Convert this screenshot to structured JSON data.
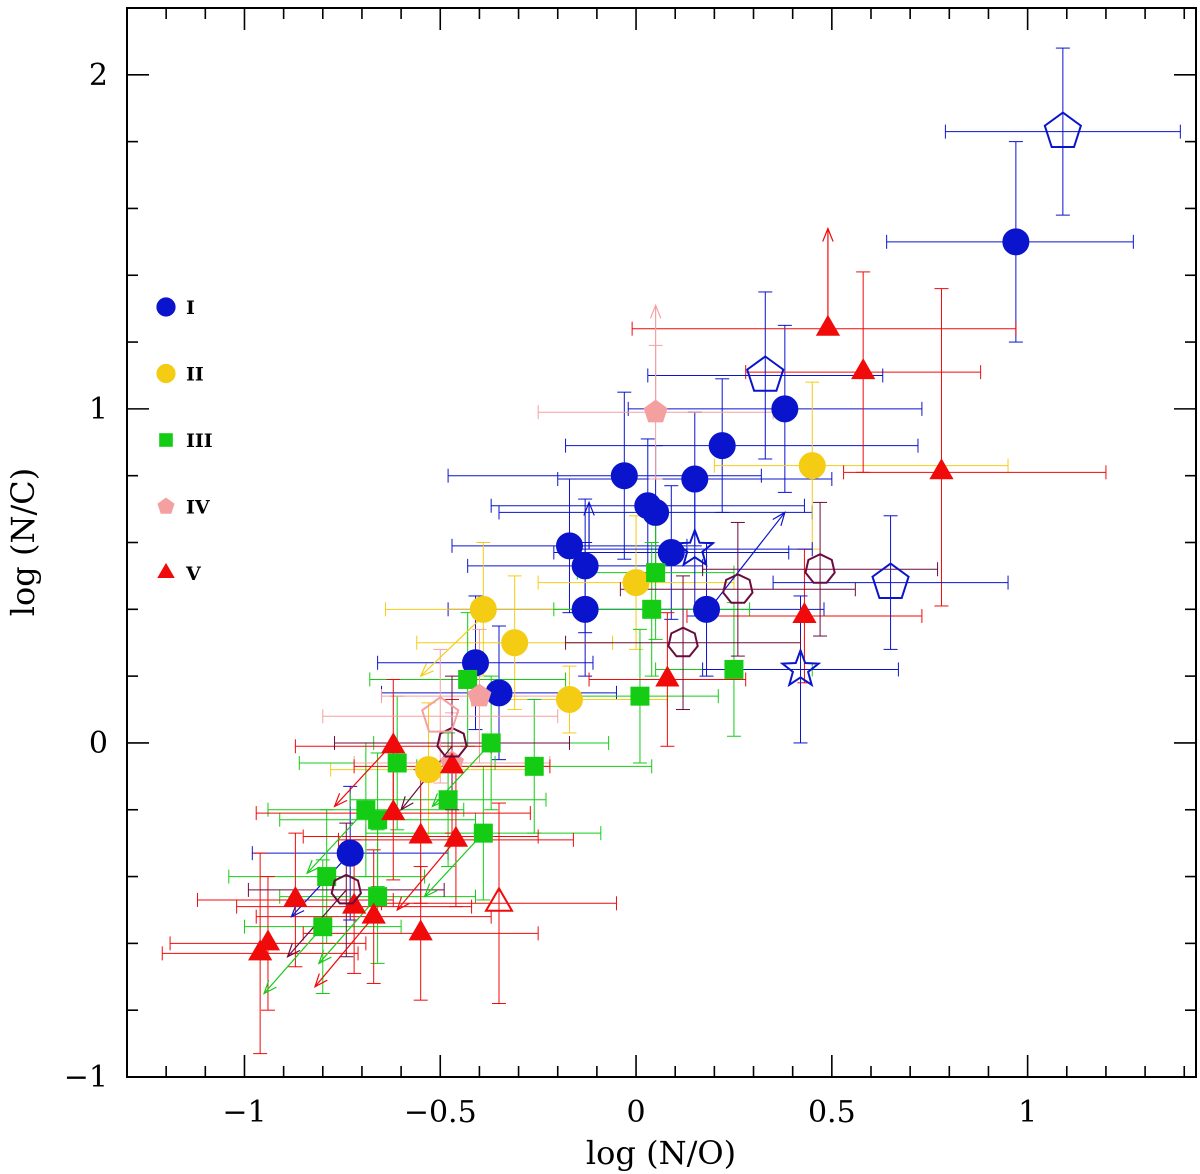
{
  "chart_data": {
    "type": "scatter",
    "title": "",
    "xlabel": "log (N/O)",
    "ylabel": "log (N/C)",
    "xlim": [
      -1.3,
      1.43
    ],
    "ylim": [
      -1.0,
      2.2
    ],
    "x_ticks": [
      -1,
      -0.5,
      0,
      0.5,
      1
    ],
    "x_tick_labels": [
      "−1",
      "−0.5",
      "0",
      "0.5",
      "1"
    ],
    "y_ticks": [
      -1,
      0,
      1,
      2
    ],
    "y_tick_labels": [
      "−1",
      "0",
      "1",
      "2"
    ],
    "grid": false,
    "legend_position": "left",
    "colors": {
      "I": "#0a14cc",
      "II": "#f5cc14",
      "III": "#14cc14",
      "IV": "#f5a0a0",
      "V": "#f00a0a",
      "other": "#6b0a3c"
    },
    "legend": [
      {
        "label": "I",
        "marker": "circle",
        "color": "#0a14cc"
      },
      {
        "label": "II",
        "marker": "circle",
        "color": "#f5cc14"
      },
      {
        "label": "III",
        "marker": "square",
        "color": "#14cc14"
      },
      {
        "label": "IV",
        "marker": "pentagon",
        "color": "#f5a0a0"
      },
      {
        "label": "V",
        "marker": "triangle",
        "color": "#f00a0a"
      }
    ],
    "series": [
      {
        "name": "I",
        "marker": "circle",
        "color": "#0a14cc",
        "points": [
          {
            "x": 0.97,
            "y": 1.5,
            "xerr": [
              0.33,
              0.3
            ],
            "yerr": [
              0.3,
              0.3
            ]
          },
          {
            "x": 0.38,
            "y": 1.0,
            "xerr": [
              0.4,
              0.35
            ],
            "yerr": [
              0.25,
              0.25
            ]
          },
          {
            "x": 0.22,
            "y": 0.89,
            "xerr": [
              0.4,
              0.5
            ],
            "yerr": [
              0.2,
              0.2
            ]
          },
          {
            "x": -0.03,
            "y": 0.8,
            "xerr": [
              0.45,
              0.35
            ],
            "yerr": [
              0.25,
              0.25
            ]
          },
          {
            "x": 0.15,
            "y": 0.79,
            "xerr": [
              0.35,
              0.35
            ],
            "yerr": [
              0.2,
              0.2
            ]
          },
          {
            "x": 0.03,
            "y": 0.71,
            "xerr": [
              0.4,
              0.4
            ],
            "yerr": [
              0.2,
              0.2
            ]
          },
          {
            "x": 0.05,
            "y": 0.69,
            "xerr": [
              0.4,
              0.4
            ],
            "yerr": [
              0.2,
              0.2
            ]
          },
          {
            "x": -0.17,
            "y": 0.59,
            "xerr": [
              0.3,
              0.3
            ],
            "yerr": [
              0.2,
              0.2
            ]
          },
          {
            "x": -0.13,
            "y": 0.53,
            "xerr": [
              0.3,
              0.3
            ],
            "yerr": [
              0.2,
              0.2
            ]
          },
          {
            "x": 0.09,
            "y": 0.57,
            "xerr": [
              0.3,
              0.3
            ],
            "yerr": [
              0.2,
              0.2
            ]
          },
          {
            "x": -0.13,
            "y": 0.4,
            "xerr": [
              0.35,
              0.3
            ],
            "yerr": [
              0.2,
              0.2
            ]
          },
          {
            "x": 0.18,
            "y": 0.4,
            "xerr": [
              0.3,
              0.3
            ],
            "yerr": [
              0.2,
              0.2
            ]
          },
          {
            "x": -0.41,
            "y": 0.24,
            "xerr": [
              0.25,
              0.3
            ],
            "yerr": [
              0.2,
              0.2
            ]
          },
          {
            "x": -0.35,
            "y": 0.15,
            "xerr": [
              0.3,
              0.3
            ],
            "yerr": [
              0.2,
              0.2
            ]
          },
          {
            "x": -0.73,
            "y": -0.33,
            "xerr": [
              0.25,
              0.25
            ],
            "yerr": [
              0.2,
              0.2
            ]
          }
        ]
      },
      {
        "name": "II",
        "marker": "circle",
        "color": "#f5cc14",
        "points": [
          {
            "x": 0.45,
            "y": 0.83,
            "xerr": [
              0.25,
              0.5
            ],
            "yerr": [
              0.25,
              0.25
            ]
          },
          {
            "x": -0.39,
            "y": 0.4,
            "xerr": [
              0.25,
              0.25
            ],
            "yerr": [
              0.2,
              0.2
            ]
          },
          {
            "x": -0.31,
            "y": 0.3,
            "xerr": [
              0.25,
              0.25
            ],
            "yerr": [
              0.2,
              0.2
            ]
          },
          {
            "x": 0.0,
            "y": 0.48,
            "xerr": [
              0.25,
              0.25
            ],
            "yerr": [
              0.2,
              0.2
            ]
          },
          {
            "x": -0.17,
            "y": 0.13,
            "xerr": [
              0.25,
              0.25
            ],
            "yerr": [
              0.1,
              0.1
            ]
          },
          {
            "x": -0.53,
            "y": -0.08,
            "xerr": [
              0.25,
              0.25
            ],
            "yerr": [
              0.2,
              0.2
            ]
          }
        ]
      },
      {
        "name": "III",
        "marker": "square",
        "color": "#14cc14",
        "points": [
          {
            "x": 0.05,
            "y": 0.51,
            "xerr": [
              0.2,
              0.2
            ],
            "yerr": [
              0.2,
              0.2
            ]
          },
          {
            "x": 0.04,
            "y": 0.4,
            "xerr": [
              0.25,
              0.25
            ],
            "yerr": [
              0.2,
              0.2
            ]
          },
          {
            "x": 0.25,
            "y": 0.22,
            "xerr": [
              0.2,
              0.2
            ],
            "yerr": [
              0.2,
              0.2
            ]
          },
          {
            "x": 0.01,
            "y": 0.14,
            "xerr": [
              0.2,
              0.2
            ],
            "yerr": [
              0.2,
              0.2
            ]
          },
          {
            "x": -0.43,
            "y": 0.19,
            "xerr": [
              0.25,
              0.25
            ],
            "yerr": [
              0.2,
              0.2
            ]
          },
          {
            "x": -0.37,
            "y": 0.0,
            "xerr": [
              0.3,
              0.3
            ],
            "yerr": [
              0.2,
              0.2
            ]
          },
          {
            "x": -0.26,
            "y": -0.07,
            "xerr": [
              0.3,
              0.3
            ],
            "yerr": [
              0.2,
              0.2
            ]
          },
          {
            "x": -0.61,
            "y": -0.06,
            "xerr": [
              0.25,
              0.25
            ],
            "yerr": [
              0.2,
              0.2
            ]
          },
          {
            "x": -0.48,
            "y": -0.17,
            "xerr": [
              0.25,
              0.25
            ],
            "yerr": [
              0.2,
              0.2
            ]
          },
          {
            "x": -0.69,
            "y": -0.2,
            "xerr": [
              0.25,
              0.25
            ],
            "yerr": [
              0.2,
              0.2
            ]
          },
          {
            "x": -0.66,
            "y": -0.23,
            "xerr": [
              0.25,
              0.25
            ],
            "yerr": [
              0.2,
              0.2
            ]
          },
          {
            "x": -0.39,
            "y": -0.27,
            "xerr": [
              0.3,
              0.3
            ],
            "yerr": [
              0.2,
              0.2
            ]
          },
          {
            "x": -0.79,
            "y": -0.4,
            "xerr": [
              0.25,
              0.25
            ],
            "yerr": [
              0.2,
              0.2
            ]
          },
          {
            "x": -0.66,
            "y": -0.46,
            "xerr": [
              0.25,
              0.25
            ],
            "yerr": [
              0.2,
              0.2
            ]
          },
          {
            "x": -0.8,
            "y": -0.55,
            "xerr": [
              0.2,
              0.2
            ],
            "yerr": [
              0.2,
              0.2
            ]
          }
        ]
      },
      {
        "name": "IV",
        "marker": "pentagon",
        "color": "#f5a0a0",
        "points": [
          {
            "x": 0.05,
            "y": 0.99,
            "xerr": [
              0.3,
              0.3
            ],
            "yerr": [
              0.2,
              0.2
            ]
          },
          {
            "x": -0.4,
            "y": 0.14,
            "xerr": [
              0.25,
              0.25
            ],
            "yerr": [
              0.2,
              0.2
            ]
          },
          {
            "x": -0.47,
            "y": -0.06,
            "xerr": [
              0.25,
              0.25
            ],
            "yerr": [
              0.15,
              0.15
            ]
          }
        ]
      },
      {
        "name": "V",
        "marker": "triangle",
        "color": "#f00a0a",
        "points": [
          {
            "x": 0.49,
            "y": 1.24,
            "xerr": [
              0.5,
              0.48
            ],
            "yerr": [
              0.0,
              0.0
            ]
          },
          {
            "x": 0.58,
            "y": 1.11,
            "xerr": [
              0.3,
              0.3
            ],
            "yerr": [
              0.3,
              0.3
            ]
          },
          {
            "x": 0.78,
            "y": 0.81,
            "xerr": [
              0.25,
              0.42
            ],
            "yerr": [
              0.4,
              0.55
            ]
          },
          {
            "x": 0.43,
            "y": 0.38,
            "xerr": [
              0.3,
              0.3
            ],
            "yerr": [
              0.2,
              0.2
            ]
          },
          {
            "x": 0.08,
            "y": 0.19,
            "xerr": [
              0.2,
              0.2
            ],
            "yerr": [
              0.2,
              0.2
            ]
          },
          {
            "x": -0.62,
            "y": -0.01,
            "xerr": [
              0.25,
              0.25
            ],
            "yerr": [
              0.2,
              0.2
            ]
          },
          {
            "x": -0.47,
            "y": -0.07,
            "xerr": [
              0.25,
              0.25
            ],
            "yerr": [
              0.2,
              0.2
            ]
          },
          {
            "x": -0.62,
            "y": -0.21,
            "xerr": [
              0.35,
              0.35
            ],
            "yerr": [
              0.2,
              0.2
            ]
          },
          {
            "x": -0.55,
            "y": -0.28,
            "xerr": [
              0.3,
              0.3
            ],
            "yerr": [
              0.2,
              0.2
            ]
          },
          {
            "x": -0.46,
            "y": -0.29,
            "xerr": [
              0.3,
              0.3
            ],
            "yerr": [
              0.2,
              0.2
            ]
          },
          {
            "x": -0.87,
            "y": -0.47,
            "xerr": [
              0.25,
              0.25
            ],
            "yerr": [
              0.2,
              0.2
            ]
          },
          {
            "x": -0.72,
            "y": -0.49,
            "xerr": [
              0.3,
              0.3
            ],
            "yerr": [
              0.2,
              0.2
            ]
          },
          {
            "x": -0.67,
            "y": -0.52,
            "xerr": [
              0.3,
              0.3
            ],
            "yerr": [
              0.2,
              0.2
            ]
          },
          {
            "x": -0.55,
            "y": -0.57,
            "xerr": [
              0.3,
              0.3
            ],
            "yerr": [
              0.2,
              0.2
            ]
          },
          {
            "x": -0.96,
            "y": -0.63,
            "xerr": [
              0.25,
              0.25
            ],
            "yerr": [
              0.3,
              0.3
            ]
          },
          {
            "x": -0.94,
            "y": -0.6,
            "xerr": [
              0.25,
              0.25
            ],
            "yerr": [
              0.2,
              0.2
            ]
          }
        ]
      }
    ],
    "open_symbols": [
      {
        "marker": "pentagon",
        "color": "#0a14cc",
        "points": [
          {
            "x": 1.09,
            "y": 1.83,
            "xerr": [
              0.3,
              0.3
            ],
            "yerr": [
              0.25,
              0.25
            ]
          },
          {
            "x": 0.33,
            "y": 1.1,
            "xerr": [
              0.3,
              0.3
            ],
            "yerr": [
              0.25,
              0.25
            ]
          },
          {
            "x": 0.65,
            "y": 0.48,
            "xerr": [
              0.3,
              0.3
            ],
            "yerr": [
              0.2,
              0.2
            ]
          }
        ]
      },
      {
        "marker": "star",
        "color": "#0a14cc",
        "points": [
          {
            "x": 0.15,
            "y": 0.58,
            "xerr": [
              0.3,
              0.3
            ],
            "yerr": [
              0.2,
              0.2
            ]
          },
          {
            "x": 0.42,
            "y": 0.22,
            "xerr": [
              0.25,
              0.25
            ],
            "yerr": [
              0.22,
              0.22
            ]
          }
        ]
      },
      {
        "marker": "heptagon",
        "color": "#6b0a3c",
        "points": [
          {
            "x": 0.47,
            "y": 0.52,
            "xerr": [
              0.3,
              0.3
            ],
            "yerr": [
              0.2,
              0.2
            ]
          },
          {
            "x": 0.26,
            "y": 0.46,
            "xerr": [
              0.3,
              0.3
            ],
            "yerr": [
              0.2,
              0.2
            ]
          },
          {
            "x": 0.12,
            "y": 0.3,
            "xerr": [
              0.3,
              0.3
            ],
            "yerr": [
              0.2,
              0.2
            ]
          },
          {
            "x": -0.47,
            "y": 0.0,
            "xerr": [
              0.3,
              0.3
            ],
            "yerr": [
              0.2,
              0.2
            ]
          },
          {
            "x": -0.74,
            "y": -0.44,
            "xerr": [
              0.25,
              0.25
            ],
            "yerr": [
              0.2,
              0.2
            ]
          }
        ]
      },
      {
        "marker": "pentagon",
        "color": "#f5a0a0",
        "points": [
          {
            "x": -0.5,
            "y": 0.08,
            "xerr": [
              0.3,
              0.3
            ],
            "yerr": [
              0.2,
              0.2
            ]
          }
        ]
      },
      {
        "marker": "triangle",
        "color": "#f00a0a",
        "points": [
          {
            "x": -0.35,
            "y": -0.48,
            "xerr": [
              0.3,
              0.3
            ],
            "yerr": [
              0.3,
              0.3
            ]
          }
        ]
      }
    ],
    "arrows": [
      {
        "color": "#f00a0a",
        "from": [
          0.49,
          1.24
        ],
        "to": [
          0.49,
          1.54
        ]
      },
      {
        "color": "#f5a0a0",
        "from": [
          0.05,
          1.01
        ],
        "to": [
          0.05,
          1.31
        ]
      },
      {
        "color": "#0a14cc",
        "from": [
          -0.12,
          0.58
        ],
        "to": [
          -0.12,
          0.72
        ]
      },
      {
        "color": "#0a14cc",
        "from": [
          0.2,
          0.42
        ],
        "to": [
          0.38,
          0.69
        ]
      },
      {
        "color": "#f5cc14",
        "from": [
          -0.39,
          0.38
        ],
        "to": [
          -0.55,
          0.2
        ]
      },
      {
        "color": "#6b0a3c",
        "from": [
          -0.47,
          -0.01
        ],
        "to": [
          -0.6,
          -0.2
        ]
      },
      {
        "color": "#f00a0a",
        "from": [
          -0.62,
          0.0
        ],
        "to": [
          -0.77,
          -0.19
        ]
      },
      {
        "color": "#14cc14",
        "from": [
          -0.8,
          -0.55
        ],
        "to": [
          -0.95,
          -0.75
        ]
      },
      {
        "color": "#14cc14",
        "from": [
          -0.66,
          -0.46
        ],
        "to": [
          -0.81,
          -0.66
        ]
      },
      {
        "color": "#f00a0a",
        "from": [
          -0.67,
          -0.52
        ],
        "to": [
          -0.82,
          -0.73
        ]
      },
      {
        "color": "#14cc14",
        "from": [
          -0.69,
          -0.2
        ],
        "to": [
          -0.84,
          -0.39
        ]
      },
      {
        "color": "#14cc14",
        "from": [
          -0.39,
          -0.27
        ],
        "to": [
          -0.54,
          -0.46
        ]
      },
      {
        "color": "#14cc14",
        "from": [
          -0.37,
          0.0
        ],
        "to": [
          -0.52,
          -0.19
        ]
      },
      {
        "color": "#f00a0a",
        "from": [
          -0.46,
          -0.29
        ],
        "to": [
          -0.61,
          -0.5
        ]
      },
      {
        "color": "#6b0a3c",
        "from": [
          -0.74,
          -0.44
        ],
        "to": [
          -0.89,
          -0.64
        ]
      },
      {
        "color": "#0a14cc",
        "from": [
          -0.73,
          -0.33
        ],
        "to": [
          -0.88,
          -0.52
        ]
      }
    ]
  }
}
